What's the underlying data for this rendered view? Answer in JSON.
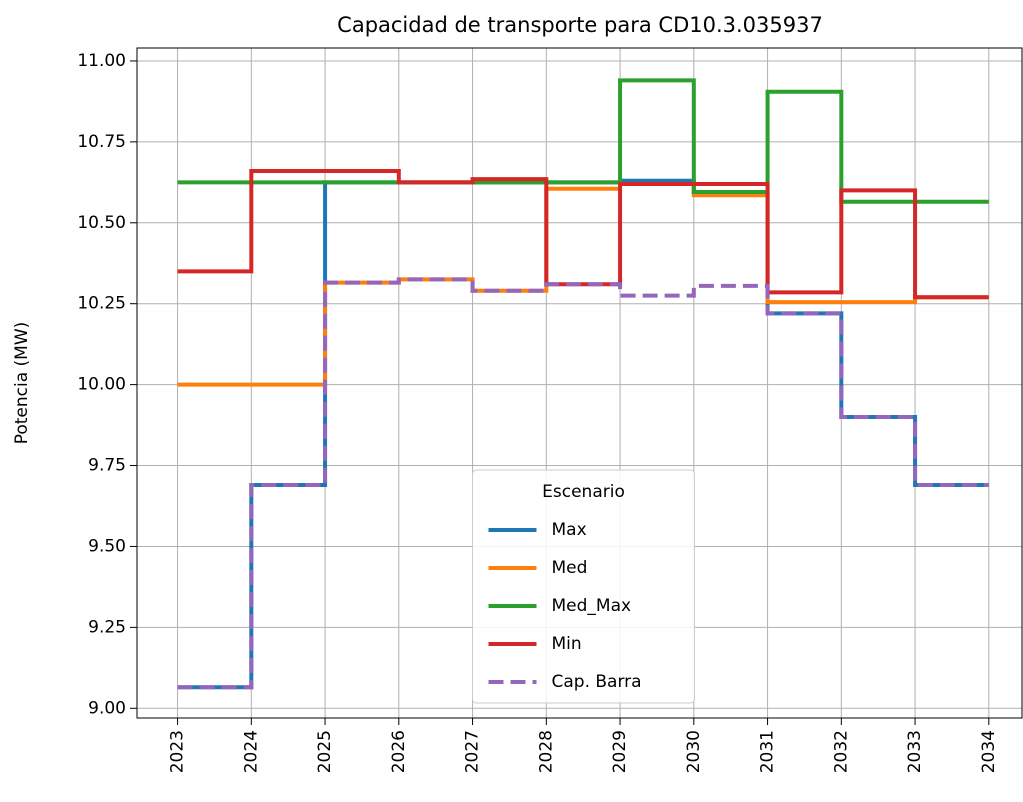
{
  "chart_data": {
    "type": "step",
    "title": "Capacidad de transporte para CD10.3.035937",
    "ylabel": "Potencia (MW)",
    "x": [
      2023,
      2024,
      2025,
      2026,
      2027,
      2028,
      2029,
      2030,
      2031,
      2032,
      2033,
      2034
    ],
    "xlim": [
      2022.45,
      2034.45
    ],
    "xticks": [
      2023,
      2024,
      2025,
      2026,
      2027,
      2028,
      2029,
      2030,
      2031,
      2032,
      2033,
      2034
    ],
    "ylim": [
      8.97,
      11.04
    ],
    "yticks": [
      {
        "value": 9.0,
        "label": "9.00"
      },
      {
        "value": 9.25,
        "label": "9.25"
      },
      {
        "value": 9.5,
        "label": "9.50"
      },
      {
        "value": 9.75,
        "label": "9.75"
      },
      {
        "value": 10.0,
        "label": "10.00"
      },
      {
        "value": 10.25,
        "label": "10.25"
      },
      {
        "value": 10.5,
        "label": "10.50"
      },
      {
        "value": 10.75,
        "label": "10.75"
      },
      {
        "value": 11.0,
        "label": "11.00"
      }
    ],
    "grid": true,
    "legend": {
      "title": "Escenario",
      "position": "lower center"
    },
    "series": [
      {
        "name": "Max",
        "color": "#1f77b4",
        "values": [
          9.065,
          9.69,
          10.625,
          10.625,
          10.625,
          10.625,
          10.63,
          10.595,
          10.22,
          9.9,
          9.69,
          9.69
        ]
      },
      {
        "name": "Med",
        "color": "#ff7f0e",
        "values": [
          10.0,
          10.0,
          10.315,
          10.325,
          10.29,
          10.605,
          10.62,
          10.585,
          10.255,
          10.255,
          10.27,
          10.27
        ]
      },
      {
        "name": "Med_Max",
        "color": "#2ca02c",
        "values": [
          10.625,
          10.625,
          10.625,
          10.625,
          10.625,
          10.625,
          10.94,
          10.595,
          10.905,
          10.565,
          10.565,
          10.565
        ]
      },
      {
        "name": "Min",
        "color": "#d62728",
        "values": [
          10.35,
          10.66,
          10.66,
          10.625,
          10.635,
          10.31,
          10.62,
          10.62,
          10.285,
          10.6,
          10.27,
          10.27
        ]
      },
      {
        "name": "Cap. Barra",
        "color": "#9467bd",
        "dashed": true,
        "values": [
          9.065,
          9.69,
          10.315,
          10.325,
          10.29,
          10.31,
          10.275,
          10.305,
          10.22,
          9.9,
          9.69,
          9.69
        ]
      }
    ]
  }
}
